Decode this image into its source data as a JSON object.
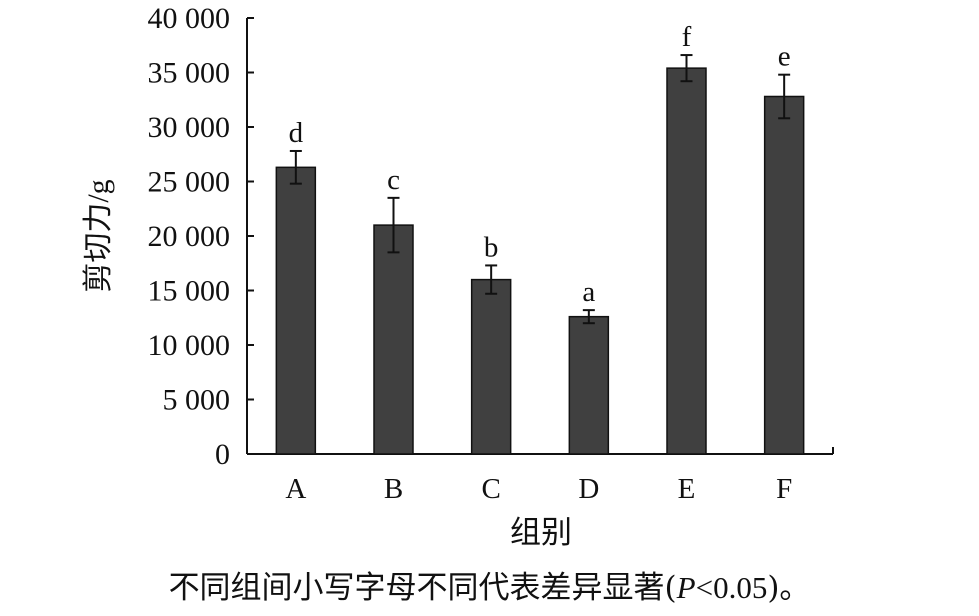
{
  "chart_data": {
    "type": "bar",
    "categories": [
      "A",
      "B",
      "C",
      "D",
      "E",
      "F"
    ],
    "values": [
      26300,
      21000,
      16000,
      12600,
      35400,
      32800
    ],
    "errors": [
      1500,
      2500,
      1300,
      600,
      1200,
      2000
    ],
    "significance_letters": [
      "d",
      "c",
      "b",
      "a",
      "f",
      "e"
    ],
    "xlabel": "组别",
    "ylabel": "剪切力/g",
    "ylim": [
      0,
      40000
    ],
    "yticks": [
      0,
      5000,
      10000,
      15000,
      20000,
      25000,
      30000,
      35000,
      40000
    ],
    "ytick_labels": [
      "0",
      "5 000",
      "10 000",
      "15 000",
      "20 000",
      "25 000",
      "30 000",
      "35 000",
      "40 000"
    ],
    "grid": false,
    "bar_color": "#404040"
  },
  "caption": {
    "prefix": "不同组间小写字母不同代表差异显著(",
    "p_symbol": "P",
    "p_value": "<0.05",
    "suffix": ")。"
  }
}
